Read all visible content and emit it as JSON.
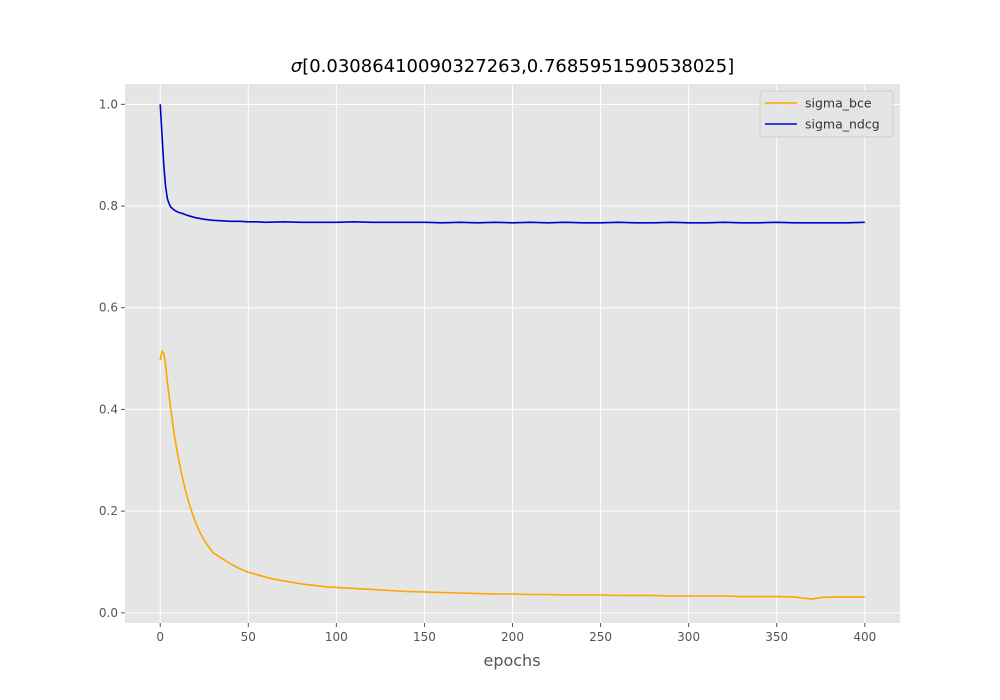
{
  "chart_data": {
    "type": "line",
    "title_symbol": "σ",
    "title_rest": "[0.03086410090327263,0.7685951590538025]",
    "xlabel": "epochs",
    "ylabel": "",
    "xlim": [
      -20,
      420
    ],
    "ylim": [
      -0.02,
      1.04
    ],
    "xticks": [
      0,
      50,
      100,
      150,
      200,
      250,
      300,
      350,
      400
    ],
    "yticks": [
      0.0,
      0.2,
      0.4,
      0.6,
      0.8,
      1.0
    ],
    "ytick_labels": [
      "0.0",
      "0.2",
      "0.4",
      "0.6",
      "0.8",
      "1.0"
    ],
    "grid": true,
    "legend_position": "top-right",
    "series": [
      {
        "name": "sigma_bce",
        "color": "#ffa500",
        "x": [
          0,
          1,
          2,
          3,
          4,
          6,
          8,
          10,
          12,
          14,
          16,
          18,
          20,
          23,
          26,
          30,
          35,
          40,
          45,
          50,
          55,
          60,
          65,
          70,
          75,
          80,
          85,
          90,
          95,
          100,
          110,
          120,
          130,
          140,
          150,
          160,
          170,
          180,
          190,
          200,
          210,
          220,
          230,
          240,
          250,
          260,
          270,
          280,
          290,
          300,
          310,
          320,
          330,
          340,
          350,
          360,
          365,
          370,
          375,
          380,
          390,
          400
        ],
        "y": [
          0.497,
          0.515,
          0.51,
          0.49,
          0.455,
          0.4,
          0.35,
          0.31,
          0.275,
          0.245,
          0.22,
          0.198,
          0.178,
          0.155,
          0.137,
          0.118,
          0.107,
          0.096,
          0.087,
          0.08,
          0.075,
          0.07,
          0.066,
          0.063,
          0.06,
          0.057,
          0.055,
          0.053,
          0.051,
          0.05,
          0.048,
          0.046,
          0.044,
          0.042,
          0.041,
          0.04,
          0.039,
          0.038,
          0.037,
          0.037,
          0.036,
          0.036,
          0.035,
          0.035,
          0.035,
          0.034,
          0.034,
          0.034,
          0.033,
          0.033,
          0.033,
          0.033,
          0.032,
          0.032,
          0.032,
          0.031,
          0.029,
          0.027,
          0.03,
          0.031,
          0.031,
          0.031
        ]
      },
      {
        "name": "sigma_ndcg",
        "color": "#0000cd",
        "x": [
          0,
          1,
          2,
          3,
          4,
          5,
          6,
          8,
          10,
          13,
          16,
          20,
          25,
          30,
          35,
          40,
          45,
          50,
          55,
          60,
          70,
          80,
          90,
          100,
          110,
          120,
          130,
          140,
          150,
          160,
          170,
          180,
          190,
          200,
          210,
          220,
          230,
          240,
          250,
          260,
          270,
          280,
          290,
          300,
          310,
          320,
          330,
          340,
          350,
          360,
          370,
          380,
          390,
          400
        ],
        "y": [
          1.0,
          0.94,
          0.88,
          0.84,
          0.815,
          0.805,
          0.798,
          0.792,
          0.788,
          0.785,
          0.781,
          0.777,
          0.774,
          0.772,
          0.771,
          0.77,
          0.77,
          0.769,
          0.769,
          0.768,
          0.769,
          0.768,
          0.768,
          0.768,
          0.769,
          0.768,
          0.768,
          0.768,
          0.768,
          0.767,
          0.768,
          0.767,
          0.768,
          0.767,
          0.768,
          0.767,
          0.768,
          0.767,
          0.767,
          0.768,
          0.767,
          0.767,
          0.768,
          0.767,
          0.767,
          0.768,
          0.767,
          0.767,
          0.768,
          0.767,
          0.767,
          0.767,
          0.767,
          0.768
        ]
      }
    ]
  }
}
